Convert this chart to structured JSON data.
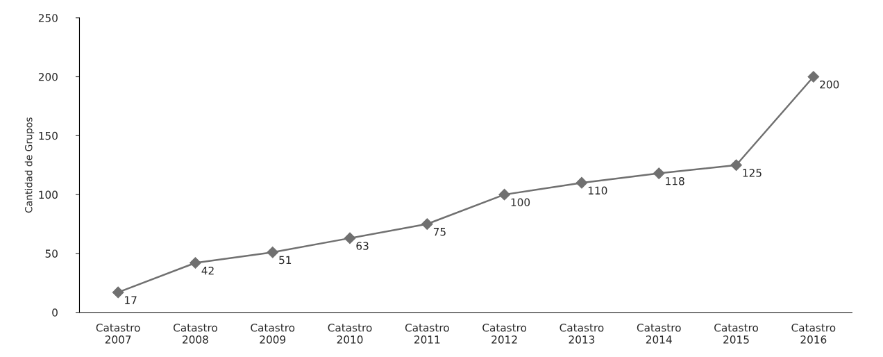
{
  "chart_data": {
    "type": "line",
    "ylabel": "Cantidad de Grupos",
    "categories": [
      "Catastro\n2007",
      "Catastro\n2008",
      "Catastro\n2009",
      "Catastro\n2010",
      "Catastro\n2011",
      "Catastro\n2012",
      "Catastro\n2013",
      "Catastro\n2014",
      "Catastro\n2015",
      "Catastro\n2016"
    ],
    "series": [
      {
        "color": "#707070",
        "values": [
          17,
          42,
          51,
          63,
          75,
          100,
          110,
          118,
          125,
          200
        ]
      }
    ],
    "ylim": [
      0,
      250
    ],
    "yticks": [
      0,
      50,
      100,
      150,
      200,
      250
    ],
    "grid": false,
    "legend": false,
    "marker": "diamond",
    "line_style": "solid",
    "data_labels": true
  }
}
